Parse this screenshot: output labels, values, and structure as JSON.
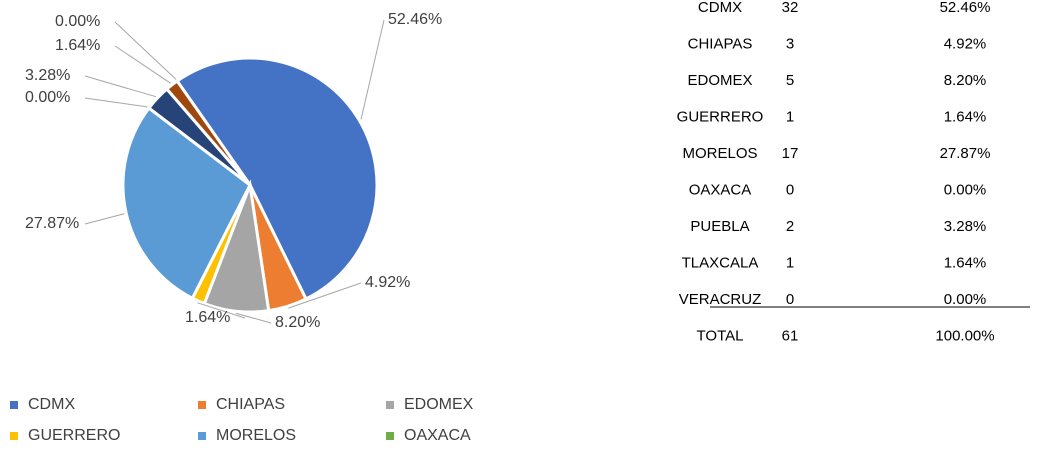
{
  "chart_data": {
    "type": "pie",
    "categories": [
      "CDMX",
      "CHIAPAS",
      "EDOMEX",
      "GUERRERO",
      "MORELOS",
      "OAXACA",
      "PUEBLA",
      "TLAXCALA",
      "VERACRUZ"
    ],
    "values": [
      52.46,
      4.92,
      8.2,
      1.64,
      27.87,
      0.0,
      3.28,
      1.64,
      0.0
    ],
    "value_labels": [
      "52.46%",
      "4.92%",
      "8.20%",
      "1.64%",
      "27.87%",
      "0.00%",
      "3.28%",
      "1.64%",
      "0.00%"
    ],
    "colors": [
      "#4472c4",
      "#ed7d31",
      "#a5a5a5",
      "#ffc000",
      "#5b9bd5",
      "#70ad47",
      "#264478",
      "#9e480e",
      "#636363"
    ],
    "legend": [
      "CDMX",
      "CHIAPAS",
      "EDOMEX",
      "GUERRERO",
      "MORELOS",
      "OAXACA"
    ]
  },
  "table": {
    "rows": [
      [
        "CDMX",
        "32",
        "52.46%"
      ],
      [
        "CHIAPAS",
        "3",
        "4.92%"
      ],
      [
        "EDOMEX",
        "5",
        "8.20%"
      ],
      [
        "GUERRERO",
        "1",
        "1.64%"
      ],
      [
        "MORELOS",
        "17",
        "27.87%"
      ],
      [
        "OAXACA",
        "0",
        "0.00%"
      ],
      [
        "PUEBLA",
        "2",
        "3.28%"
      ],
      [
        "TLAXCALA",
        "1",
        "1.64%"
      ],
      [
        "VERACRUZ",
        "0",
        "0.00%"
      ],
      [
        "TOTAL",
        "61",
        "100.00%"
      ]
    ]
  }
}
